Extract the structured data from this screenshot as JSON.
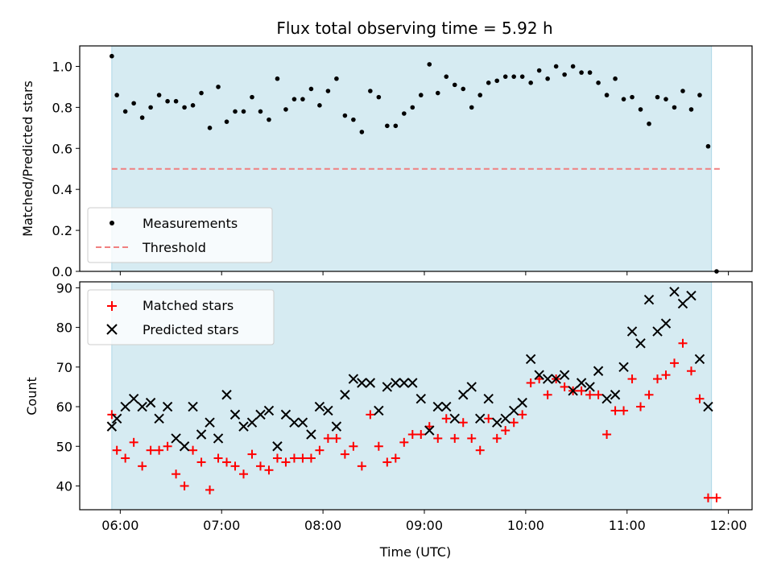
{
  "chart_data": [
    {
      "type": "scatter",
      "title": "Flux total observing time = 5.92 h",
      "xlabel": "",
      "ylabel": "Matched/Predicted stars",
      "ylim": [
        0,
        1.1
      ],
      "yticks": [
        "0.0",
        "0.2",
        "0.4",
        "0.6",
        "0.8",
        "1.0"
      ],
      "grid": false,
      "legend_placement": "lower-left",
      "shaded_span": {
        "from": "05:55",
        "to": "11:50",
        "color": "#add8e6"
      },
      "threshold": {
        "name": "Threshold",
        "value": 0.5,
        "color": "#f08080",
        "style": "dashed"
      },
      "series": [
        {
          "name": "Measurements",
          "marker": "dot",
          "color": "#000000",
          "points": [
            [
              "05:55",
              1.05
            ],
            [
              "05:58",
              0.86
            ],
            [
              "06:03",
              0.78
            ],
            [
              "06:08",
              0.82
            ],
            [
              "06:13",
              0.75
            ],
            [
              "06:18",
              0.8
            ],
            [
              "06:23",
              0.86
            ],
            [
              "06:28",
              0.83
            ],
            [
              "06:33",
              0.83
            ],
            [
              "06:38",
              0.8
            ],
            [
              "06:43",
              0.81
            ],
            [
              "06:48",
              0.87
            ],
            [
              "06:53",
              0.7
            ],
            [
              "06:58",
              0.9
            ],
            [
              "07:03",
              0.73
            ],
            [
              "07:08",
              0.78
            ],
            [
              "07:13",
              0.78
            ],
            [
              "07:18",
              0.85
            ],
            [
              "07:23",
              0.78
            ],
            [
              "07:28",
              0.74
            ],
            [
              "07:33",
              0.94
            ],
            [
              "07:38",
              0.79
            ],
            [
              "07:43",
              0.84
            ],
            [
              "07:48",
              0.84
            ],
            [
              "07:53",
              0.89
            ],
            [
              "07:58",
              0.81
            ],
            [
              "08:03",
              0.88
            ],
            [
              "08:08",
              0.94
            ],
            [
              "08:13",
              0.76
            ],
            [
              "08:18",
              0.74
            ],
            [
              "08:23",
              0.68
            ],
            [
              "08:28",
              0.88
            ],
            [
              "08:33",
              0.85
            ],
            [
              "08:38",
              0.71
            ],
            [
              "08:43",
              0.71
            ],
            [
              "08:48",
              0.77
            ],
            [
              "08:53",
              0.8
            ],
            [
              "08:58",
              0.86
            ],
            [
              "09:03",
              1.01
            ],
            [
              "09:08",
              0.87
            ],
            [
              "09:13",
              0.95
            ],
            [
              "09:18",
              0.91
            ],
            [
              "09:23",
              0.89
            ],
            [
              "09:28",
              0.8
            ],
            [
              "09:33",
              0.86
            ],
            [
              "09:38",
              0.92
            ],
            [
              "09:43",
              0.93
            ],
            [
              "09:48",
              0.95
            ],
            [
              "09:53",
              0.95
            ],
            [
              "09:58",
              0.95
            ],
            [
              "10:03",
              0.92
            ],
            [
              "10:08",
              0.98
            ],
            [
              "10:13",
              0.94
            ],
            [
              "10:18",
              1.0
            ],
            [
              "10:23",
              0.96
            ],
            [
              "10:28",
              1.0
            ],
            [
              "10:33",
              0.97
            ],
            [
              "10:38",
              0.97
            ],
            [
              "10:43",
              0.92
            ],
            [
              "10:48",
              0.86
            ],
            [
              "10:53",
              0.94
            ],
            [
              "10:58",
              0.84
            ],
            [
              "11:03",
              0.85
            ],
            [
              "11:08",
              0.79
            ],
            [
              "11:13",
              0.72
            ],
            [
              "11:18",
              0.85
            ],
            [
              "11:23",
              0.84
            ],
            [
              "11:28",
              0.8
            ],
            [
              "11:33",
              0.88
            ],
            [
              "11:38",
              0.79
            ],
            [
              "11:43",
              0.86
            ],
            [
              "11:48",
              0.61
            ],
            [
              "11:53",
              0.0
            ]
          ]
        }
      ]
    },
    {
      "type": "scatter",
      "title": "",
      "xlabel": "Time (UTC)",
      "ylabel": "Count",
      "ylim": [
        34,
        91.5
      ],
      "yticks": [
        "40",
        "50",
        "60",
        "70",
        "80",
        "90"
      ],
      "xticks": [
        "06:00",
        "07:00",
        "08:00",
        "09:00",
        "10:00",
        "11:00",
        "12:00"
      ],
      "xlim": [
        "05:36",
        "12:14"
      ],
      "grid": false,
      "legend_placement": "top-left",
      "shaded_span": {
        "from": "05:55",
        "to": "11:50",
        "color": "#add8e6"
      },
      "series": [
        {
          "name": "Matched stars",
          "marker": "plus",
          "color": "#ff0000",
          "points": [
            [
              "05:55",
              58
            ],
            [
              "05:58",
              49
            ],
            [
              "06:03",
              47
            ],
            [
              "06:08",
              51
            ],
            [
              "06:13",
              45
            ],
            [
              "06:18",
              49
            ],
            [
              "06:23",
              49
            ],
            [
              "06:28",
              50
            ],
            [
              "06:33",
              43
            ],
            [
              "06:38",
              40
            ],
            [
              "06:43",
              49
            ],
            [
              "06:48",
              46
            ],
            [
              "06:53",
              39
            ],
            [
              "06:58",
              47
            ],
            [
              "07:03",
              46
            ],
            [
              "07:08",
              45
            ],
            [
              "07:13",
              43
            ],
            [
              "07:18",
              48
            ],
            [
              "07:23",
              45
            ],
            [
              "07:28",
              44
            ],
            [
              "07:33",
              47
            ],
            [
              "07:38",
              46
            ],
            [
              "07:43",
              47
            ],
            [
              "07:48",
              47
            ],
            [
              "07:53",
              47
            ],
            [
              "07:58",
              49
            ],
            [
              "08:03",
              52
            ],
            [
              "08:08",
              52
            ],
            [
              "08:13",
              48
            ],
            [
              "08:18",
              50
            ],
            [
              "08:23",
              45
            ],
            [
              "08:28",
              58
            ],
            [
              "08:33",
              50
            ],
            [
              "08:38",
              46
            ],
            [
              "08:43",
              47
            ],
            [
              "08:48",
              51
            ],
            [
              "08:53",
              53
            ],
            [
              "08:58",
              53
            ],
            [
              "09:03",
              55
            ],
            [
              "09:08",
              52
            ],
            [
              "09:13",
              57
            ],
            [
              "09:18",
              52
            ],
            [
              "09:23",
              56
            ],
            [
              "09:28",
              52
            ],
            [
              "09:33",
              49
            ],
            [
              "09:38",
              57
            ],
            [
              "09:43",
              52
            ],
            [
              "09:48",
              54
            ],
            [
              "09:53",
              56
            ],
            [
              "09:58",
              58
            ],
            [
              "10:03",
              66
            ],
            [
              "10:08",
              67
            ],
            [
              "10:13",
              63
            ],
            [
              "10:18",
              67
            ],
            [
              "10:23",
              65
            ],
            [
              "10:28",
              64
            ],
            [
              "10:33",
              64
            ],
            [
              "10:38",
              63
            ],
            [
              "10:43",
              63
            ],
            [
              "10:48",
              53
            ],
            [
              "10:53",
              59
            ],
            [
              "10:58",
              59
            ],
            [
              "11:03",
              67
            ],
            [
              "11:08",
              60
            ],
            [
              "11:13",
              63
            ],
            [
              "11:18",
              67
            ],
            [
              "11:23",
              68
            ],
            [
              "11:28",
              71
            ],
            [
              "11:33",
              76
            ],
            [
              "11:38",
              69
            ],
            [
              "11:43",
              62
            ],
            [
              "11:48",
              37
            ],
            [
              "11:53",
              37
            ]
          ]
        },
        {
          "name": "Predicted stars",
          "marker": "x",
          "color": "#000000",
          "points": [
            [
              "05:55",
              55
            ],
            [
              "05:58",
              57
            ],
            [
              "06:03",
              60
            ],
            [
              "06:08",
              62
            ],
            [
              "06:13",
              60
            ],
            [
              "06:18",
              61
            ],
            [
              "06:23",
              57
            ],
            [
              "06:28",
              60
            ],
            [
              "06:33",
              52
            ],
            [
              "06:38",
              50
            ],
            [
              "06:43",
              60
            ],
            [
              "06:48",
              53
            ],
            [
              "06:53",
              56
            ],
            [
              "06:58",
              52
            ],
            [
              "07:03",
              63
            ],
            [
              "07:08",
              58
            ],
            [
              "07:13",
              55
            ],
            [
              "07:18",
              56
            ],
            [
              "07:23",
              58
            ],
            [
              "07:28",
              59
            ],
            [
              "07:33",
              50
            ],
            [
              "07:38",
              58
            ],
            [
              "07:43",
              56
            ],
            [
              "07:48",
              56
            ],
            [
              "07:53",
              53
            ],
            [
              "07:58",
              60
            ],
            [
              "08:03",
              59
            ],
            [
              "08:08",
              55
            ],
            [
              "08:13",
              63
            ],
            [
              "08:18",
              67
            ],
            [
              "08:23",
              66
            ],
            [
              "08:28",
              66
            ],
            [
              "08:33",
              59
            ],
            [
              "08:38",
              65
            ],
            [
              "08:43",
              66
            ],
            [
              "08:48",
              66
            ],
            [
              "08:53",
              66
            ],
            [
              "08:58",
              62
            ],
            [
              "09:03",
              54
            ],
            [
              "09:08",
              60
            ],
            [
              "09:13",
              60
            ],
            [
              "09:18",
              57
            ],
            [
              "09:23",
              63
            ],
            [
              "09:28",
              65
            ],
            [
              "09:33",
              57
            ],
            [
              "09:38",
              62
            ],
            [
              "09:43",
              56
            ],
            [
              "09:48",
              57
            ],
            [
              "09:53",
              59
            ],
            [
              "09:58",
              61
            ],
            [
              "10:03",
              72
            ],
            [
              "10:08",
              68
            ],
            [
              "10:13",
              67
            ],
            [
              "10:18",
              67
            ],
            [
              "10:23",
              68
            ],
            [
              "10:28",
              64
            ],
            [
              "10:33",
              66
            ],
            [
              "10:38",
              65
            ],
            [
              "10:43",
              69
            ],
            [
              "10:48",
              62
            ],
            [
              "10:53",
              63
            ],
            [
              "10:58",
              70
            ],
            [
              "11:03",
              79
            ],
            [
              "11:08",
              76
            ],
            [
              "11:13",
              87
            ],
            [
              "11:18",
              79
            ],
            [
              "11:23",
              81
            ],
            [
              "11:28",
              89
            ],
            [
              "11:33",
              86
            ],
            [
              "11:38",
              88
            ],
            [
              "11:43",
              72
            ],
            [
              "11:48",
              60
            ]
          ]
        }
      ]
    }
  ]
}
